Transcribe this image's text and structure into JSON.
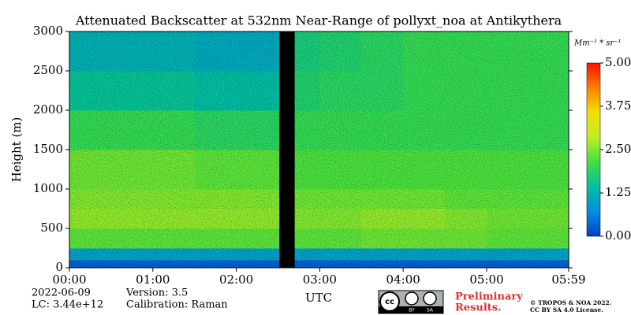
{
  "chart_data": {
    "type": "heatmap",
    "title": "Attenuated Backscatter at 532nm Near-Range of pollyxt_noa at Antikythera",
    "y_label": "Height (m)",
    "x_label": "UTC",
    "xlim": [
      0,
      359
    ],
    "xticks": [
      {
        "value": 0,
        "label": "00:00"
      },
      {
        "value": 60,
        "label": "01:00"
      },
      {
        "value": 120,
        "label": "02:00"
      },
      {
        "value": 180,
        "label": "03:00"
      },
      {
        "value": 240,
        "label": "04:00"
      },
      {
        "value": 300,
        "label": "05:00"
      },
      {
        "value": 359,
        "label": "05:59"
      }
    ],
    "ylim": [
      0,
      3000
    ],
    "yticks": [
      0,
      500,
      1000,
      1500,
      2000,
      2500,
      3000
    ],
    "xbins": [
      0,
      30,
      60,
      90,
      120,
      151,
      162,
      180,
      210,
      240,
      270,
      300,
      330,
      359
    ],
    "ybins": [
      0,
      100,
      250,
      500,
      750,
      1000,
      1500,
      2000,
      2500,
      3000
    ],
    "values": [
      [
        0.3,
        0.3,
        0.3,
        0.3,
        0.3,
        null,
        0.3,
        0.3,
        0.3,
        0.3,
        0.3,
        0.3,
        0.3
      ],
      [
        1.0,
        1.0,
        1.0,
        1.0,
        1.0,
        null,
        1.0,
        1.0,
        1.0,
        1.0,
        1.0,
        1.0,
        1.0
      ],
      [
        2.3,
        2.3,
        2.3,
        2.3,
        2.3,
        null,
        2.3,
        2.3,
        2.4,
        2.4,
        2.4,
        2.3,
        2.3
      ],
      [
        2.6,
        2.6,
        2.6,
        2.6,
        2.6,
        null,
        2.5,
        2.5,
        2.6,
        2.6,
        2.5,
        2.4,
        2.4
      ],
      [
        2.5,
        2.5,
        2.5,
        2.5,
        2.5,
        null,
        2.4,
        2.4,
        2.4,
        2.4,
        2.3,
        2.3,
        2.3
      ],
      [
        2.4,
        2.4,
        2.4,
        2.3,
        2.3,
        null,
        2.2,
        2.2,
        2.2,
        2.2,
        2.2,
        2.2,
        2.2
      ],
      [
        2.0,
        2.0,
        2.0,
        1.9,
        1.9,
        null,
        2.0,
        2.0,
        2.0,
        2.0,
        2.0,
        2.0,
        2.0
      ],
      [
        1.5,
        1.5,
        1.5,
        1.4,
        1.4,
        null,
        1.8,
        1.9,
        1.9,
        2.0,
        2.0,
        2.0,
        2.0
      ],
      [
        1.2,
        1.2,
        1.2,
        1.1,
        1.1,
        null,
        1.7,
        1.8,
        1.9,
        2.0,
        2.0,
        2.0,
        2.0
      ]
    ],
    "missing_color": "#000000",
    "colormap": [
      "#0040c8",
      "#0090e0",
      "#00c0a0",
      "#40e040",
      "#c0f020",
      "#f0e000",
      "#ff8000",
      "#ff1000"
    ],
    "clim": [
      0,
      5
    ],
    "colorbar_label": "Mm⁻¹ * sr⁻¹",
    "colorbar_ticks": [
      {
        "value": 0,
        "label": "0.00"
      },
      {
        "value": 1.25,
        "label": "1.25"
      },
      {
        "value": 2.5,
        "label": "2.50"
      },
      {
        "value": 3.75,
        "label": "3.75"
      },
      {
        "value": 5,
        "label": "5.00"
      }
    ],
    "date": "2022-06-09",
    "lc": "LC: 3.44e+12",
    "version": "Version: 3.5",
    "calibration": "Calibration: Raman",
    "notice": [
      "Preliminary",
      "Results."
    ],
    "copyright": [
      "© TROPOS & NOA 2022.",
      "CC BY SA 4.0 License."
    ],
    "badge": [
      "BY",
      "SA"
    ]
  }
}
